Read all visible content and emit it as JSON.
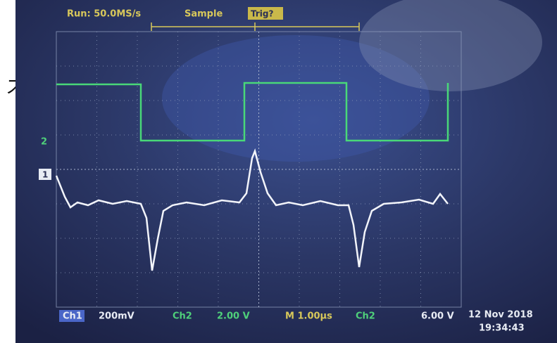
{
  "side_text": "ス",
  "top_bar": {
    "run": "Run: 50.0MS/s",
    "mode": "Sample",
    "trigger": "Trig?"
  },
  "markers": {
    "ch2": "2",
    "ch1": "1"
  },
  "bottom_bar": {
    "ch1": "Ch1",
    "ch1_scale": "200mV",
    "ch2": "Ch2",
    "ch2_scale": "2.00 V",
    "timebase": "M 1.00µs",
    "trig_source": "Ch2",
    "trig_level": "6.00 V",
    "date": "12 Nov 2018",
    "time": "19:34:43"
  }
}
